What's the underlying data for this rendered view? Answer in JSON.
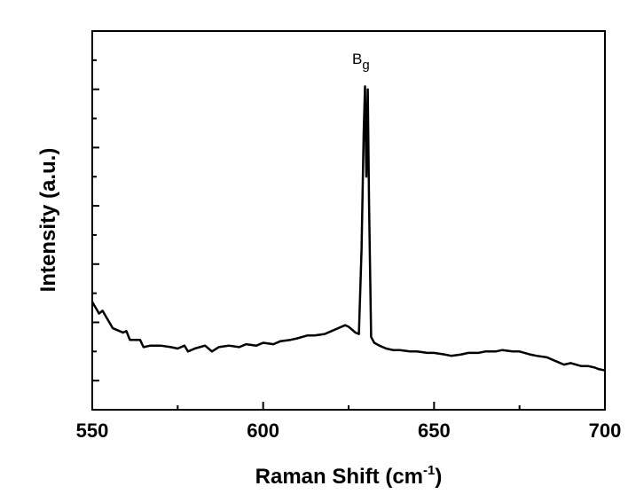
{
  "chart_data": {
    "type": "line",
    "title": "",
    "xlabel": "Raman Shift (cm",
    "xlabel_superscript": "-1",
    "xlabel_suffix": ")",
    "ylabel": "Intensity (a.u.)",
    "xlim": [
      550,
      700
    ],
    "ylim": [
      0,
      13
    ],
    "x_ticks": [
      "550",
      "600",
      "650",
      "700"
    ],
    "y_tick_labels_shown": false,
    "grid": false,
    "line_color": "#000000",
    "annotations": [
      {
        "text": "B",
        "subscript": "g",
        "x": 630,
        "y": 11.8
      }
    ],
    "series": [
      {
        "points": [
          [
            550,
            3.7
          ],
          [
            551,
            3.5
          ],
          [
            552,
            3.3
          ],
          [
            553,
            3.4
          ],
          [
            554,
            3.2
          ],
          [
            555,
            3.0
          ],
          [
            556,
            2.8
          ],
          [
            557,
            2.75
          ],
          [
            558,
            2.7
          ],
          [
            559,
            2.65
          ],
          [
            560,
            2.7
          ],
          [
            561,
            2.4
          ],
          [
            563,
            2.4
          ],
          [
            564,
            2.4
          ],
          [
            565,
            2.15
          ],
          [
            567,
            2.2
          ],
          [
            570,
            2.2
          ],
          [
            573,
            2.15
          ],
          [
            575,
            2.1
          ],
          [
            577,
            2.2
          ],
          [
            578,
            2.0
          ],
          [
            580,
            2.1
          ],
          [
            583,
            2.2
          ],
          [
            585,
            2.0
          ],
          [
            587,
            2.15
          ],
          [
            590,
            2.2
          ],
          [
            593,
            2.15
          ],
          [
            595,
            2.25
          ],
          [
            598,
            2.2
          ],
          [
            600,
            2.3
          ],
          [
            603,
            2.25
          ],
          [
            605,
            2.35
          ],
          [
            608,
            2.4
          ],
          [
            610,
            2.45
          ],
          [
            613,
            2.55
          ],
          [
            615,
            2.55
          ],
          [
            618,
            2.6
          ],
          [
            620,
            2.7
          ],
          [
            622,
            2.8
          ],
          [
            624,
            2.9
          ],
          [
            625,
            2.85
          ],
          [
            626,
            2.75
          ],
          [
            627,
            2.65
          ],
          [
            628,
            2.6
          ],
          [
            628.8,
            5.5
          ],
          [
            629.4,
            9.5
          ],
          [
            629.8,
            11.1
          ],
          [
            630.2,
            8.0
          ],
          [
            630.6,
            11.0
          ],
          [
            631.0,
            7.0
          ],
          [
            631.6,
            2.5
          ],
          [
            632.5,
            2.3
          ],
          [
            634,
            2.2
          ],
          [
            636,
            2.1
          ],
          [
            638,
            2.05
          ],
          [
            640,
            2.05
          ],
          [
            643,
            2.0
          ],
          [
            645,
            2.0
          ],
          [
            648,
            1.95
          ],
          [
            650,
            1.95
          ],
          [
            653,
            1.9
          ],
          [
            655,
            1.85
          ],
          [
            658,
            1.9
          ],
          [
            660,
            1.95
          ],
          [
            663,
            1.95
          ],
          [
            665,
            2.0
          ],
          [
            668,
            2.0
          ],
          [
            670,
            2.05
          ],
          [
            673,
            2.0
          ],
          [
            675,
            2.0
          ],
          [
            678,
            1.9
          ],
          [
            680,
            1.85
          ],
          [
            683,
            1.8
          ],
          [
            685,
            1.7
          ],
          [
            688,
            1.55
          ],
          [
            690,
            1.6
          ],
          [
            693,
            1.5
          ],
          [
            695,
            1.5
          ],
          [
            697,
            1.45
          ],
          [
            698,
            1.4
          ],
          [
            700,
            1.35
          ]
        ]
      }
    ]
  }
}
